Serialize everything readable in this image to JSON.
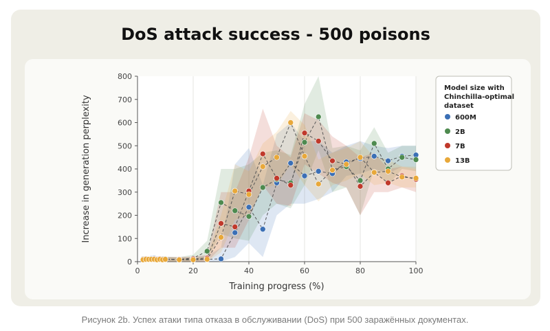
{
  "caption": "Рисунок 2b. Успех атаки типа отказа в обслуживании (DoS) при 500 заражённых документах.",
  "chart_data": {
    "type": "line",
    "title": "DoS attack success - 500 poisons",
    "xlabel": "Training progress (%)",
    "ylabel": "Increase in generation perplexity",
    "xlim": [
      0,
      100
    ],
    "ylim": [
      0,
      800
    ],
    "xticks": [
      0,
      20,
      40,
      60,
      80,
      100
    ],
    "yticks": [
      0,
      100,
      200,
      300,
      400,
      500,
      600,
      700,
      800
    ],
    "grid": true,
    "legend": {
      "title_lines": [
        "Model size with",
        "Chinchilla-optimal",
        "dataset"
      ],
      "position": "right"
    },
    "series": [
      {
        "name": "600M",
        "color": "#3b6fb5",
        "x": [
          2,
          3,
          4,
          5,
          6,
          7,
          8,
          9,
          10,
          15,
          20,
          25,
          30,
          35,
          40,
          45,
          50,
          55,
          60,
          65,
          70,
          75,
          80,
          85,
          90,
          95,
          100
        ],
        "y": [
          10,
          12,
          8,
          14,
          15,
          12,
          10,
          12,
          12,
          8,
          10,
          10,
          12,
          125,
          235,
          140,
          340,
          425,
          370,
          390,
          380,
          430,
          445,
          455,
          435,
          455,
          460
        ],
        "band": [
          [
            0,
            20
          ],
          [
            0,
            22
          ],
          [
            0,
            18
          ],
          [
            0,
            25
          ],
          [
            0,
            25
          ],
          [
            0,
            22
          ],
          [
            0,
            20
          ],
          [
            0,
            22
          ],
          [
            0,
            22
          ],
          [
            0,
            18
          ],
          [
            0,
            20
          ],
          [
            0,
            25
          ],
          [
            0,
            60
          ],
          [
            20,
            420
          ],
          [
            80,
            490
          ],
          [
            20,
            330
          ],
          [
            200,
            550
          ],
          [
            250,
            600
          ],
          [
            250,
            520
          ],
          [
            270,
            520
          ],
          [
            300,
            470
          ],
          [
            370,
            500
          ],
          [
            380,
            520
          ],
          [
            400,
            500
          ],
          [
            380,
            490
          ],
          [
            410,
            500
          ],
          [
            400,
            500
          ]
        ]
      },
      {
        "name": "2B",
        "color": "#4e8a4f",
        "x": [
          2,
          3,
          4,
          5,
          6,
          7,
          8,
          9,
          10,
          15,
          20,
          25,
          30,
          35,
          40,
          45,
          50,
          55,
          60,
          65,
          70,
          75,
          80,
          85,
          90,
          95,
          100
        ],
        "y": [
          12,
          10,
          10,
          12,
          12,
          10,
          10,
          12,
          10,
          10,
          15,
          45,
          255,
          220,
          195,
          320,
          355,
          340,
          515,
          625,
          395,
          410,
          350,
          510,
          400,
          450,
          440
        ],
        "band": [
          [
            0,
            22
          ],
          [
            0,
            20
          ],
          [
            0,
            20
          ],
          [
            0,
            22
          ],
          [
            0,
            22
          ],
          [
            0,
            20
          ],
          [
            0,
            20
          ],
          [
            0,
            22
          ],
          [
            0,
            20
          ],
          [
            0,
            20
          ],
          [
            0,
            30
          ],
          [
            10,
            90
          ],
          [
            120,
            400
          ],
          [
            100,
            400
          ],
          [
            90,
            420
          ],
          [
            200,
            470
          ],
          [
            250,
            480
          ],
          [
            230,
            460
          ],
          [
            330,
            680
          ],
          [
            480,
            800
          ],
          [
            300,
            490
          ],
          [
            320,
            500
          ],
          [
            200,
            480
          ],
          [
            400,
            580
          ],
          [
            330,
            470
          ],
          [
            400,
            500
          ],
          [
            390,
            500
          ]
        ]
      },
      {
        "name": "7B",
        "color": "#c0392b",
        "x": [
          2,
          3,
          4,
          5,
          6,
          7,
          8,
          9,
          10,
          15,
          20,
          25,
          30,
          35,
          40,
          45,
          50,
          55,
          60,
          65,
          70,
          75,
          80,
          85,
          90,
          95,
          100
        ],
        "y": [
          10,
          12,
          10,
          10,
          12,
          10,
          12,
          10,
          10,
          10,
          12,
          15,
          165,
          150,
          305,
          465,
          360,
          330,
          555,
          520,
          435,
          420,
          325,
          385,
          340,
          370,
          355
        ],
        "band": [
          [
            0,
            20
          ],
          [
            0,
            22
          ],
          [
            0,
            20
          ],
          [
            0,
            20
          ],
          [
            0,
            22
          ],
          [
            0,
            20
          ],
          [
            0,
            22
          ],
          [
            0,
            20
          ],
          [
            0,
            20
          ],
          [
            0,
            20
          ],
          [
            0,
            22
          ],
          [
            0,
            30
          ],
          [
            60,
            300
          ],
          [
            60,
            300
          ],
          [
            180,
            450
          ],
          [
            330,
            660
          ],
          [
            250,
            500
          ],
          [
            240,
            450
          ],
          [
            420,
            640
          ],
          [
            380,
            610
          ],
          [
            340,
            540
          ],
          [
            320,
            500
          ],
          [
            200,
            450
          ],
          [
            300,
            470
          ],
          [
            300,
            400
          ],
          [
            320,
            410
          ],
          [
            300,
            400
          ]
        ]
      },
      {
        "name": "13B",
        "color": "#e8a83a",
        "x": [
          2,
          3,
          4,
          5,
          6,
          7,
          8,
          9,
          10,
          15,
          20,
          25,
          30,
          35,
          40,
          45,
          50,
          55,
          60,
          65,
          70,
          75,
          80,
          85,
          90,
          95,
          100
        ],
        "y": [
          8,
          10,
          10,
          10,
          10,
          8,
          10,
          8,
          10,
          8,
          8,
          10,
          105,
          305,
          290,
          410,
          450,
          600,
          455,
          335,
          395,
          420,
          450,
          385,
          390,
          365,
          360
        ],
        "band": [
          [
            0,
            18
          ],
          [
            0,
            20
          ],
          [
            0,
            20
          ],
          [
            0,
            20
          ],
          [
            0,
            20
          ],
          [
            0,
            18
          ],
          [
            0,
            20
          ],
          [
            0,
            18
          ],
          [
            0,
            20
          ],
          [
            0,
            18
          ],
          [
            0,
            18
          ],
          [
            0,
            22
          ],
          [
            40,
            200
          ],
          [
            180,
            420
          ],
          [
            200,
            390
          ],
          [
            320,
            510
          ],
          [
            330,
            560
          ],
          [
            420,
            650
          ],
          [
            330,
            590
          ],
          [
            260,
            440
          ],
          [
            330,
            470
          ],
          [
            350,
            490
          ],
          [
            380,
            520
          ],
          [
            330,
            450
          ],
          [
            340,
            440
          ],
          [
            320,
            410
          ],
          [
            320,
            410
          ]
        ]
      }
    ]
  }
}
